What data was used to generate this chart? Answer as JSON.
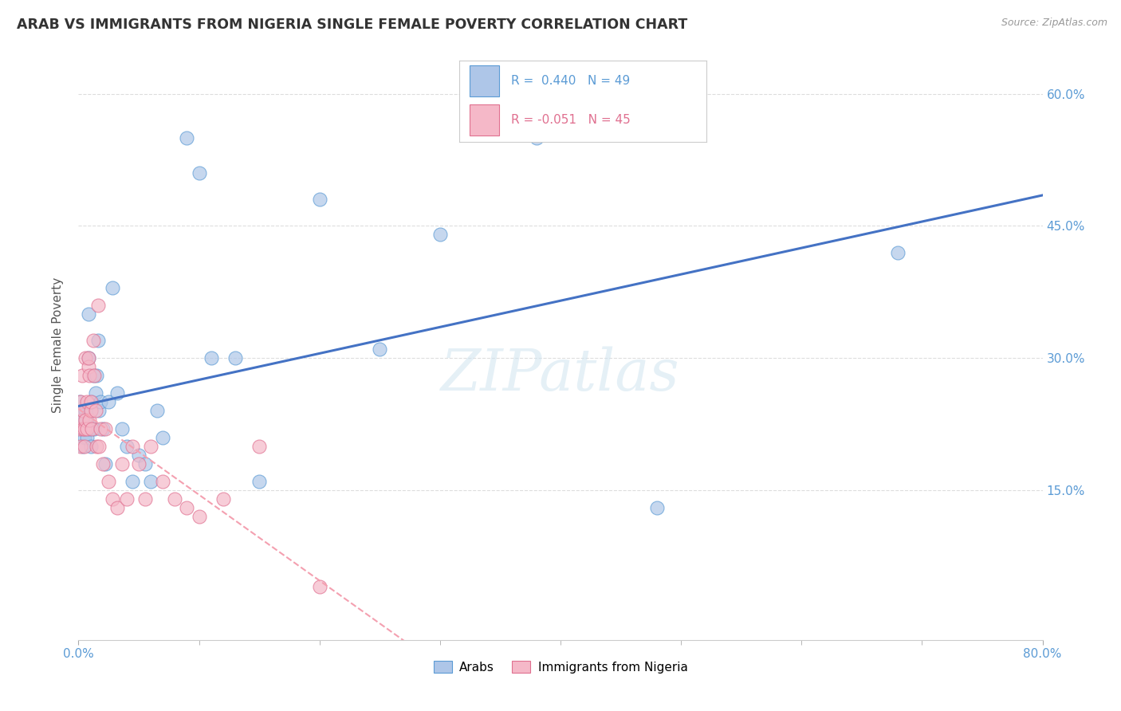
{
  "title": "ARAB VS IMMIGRANTS FROM NIGERIA SINGLE FEMALE POVERTY CORRELATION CHART",
  "source": "Source: ZipAtlas.com",
  "ylabel": "Single Female Poverty",
  "xlim": [
    0.0,
    0.8
  ],
  "ylim": [
    -0.02,
    0.65
  ],
  "ytick_vals": [
    0.15,
    0.3,
    0.45,
    0.6
  ],
  "ytick_labels": [
    "15.0%",
    "30.0%",
    "45.0%",
    "60.0%"
  ],
  "arab_R": 0.44,
  "arab_N": 49,
  "nigeria_R": -0.051,
  "nigeria_N": 45,
  "arab_color": "#aec6e8",
  "nigeria_color": "#f5b8c8",
  "arab_edge_color": "#5b9bd5",
  "nigeria_edge_color": "#e07090",
  "arab_line_color": "#4472c4",
  "nigeria_line_color": "#f4a0b0",
  "watermark": "ZIPatlas",
  "arab_scatter_x": [
    0.001,
    0.002,
    0.003,
    0.003,
    0.004,
    0.004,
    0.005,
    0.005,
    0.006,
    0.006,
    0.007,
    0.007,
    0.008,
    0.008,
    0.009,
    0.01,
    0.01,
    0.011,
    0.012,
    0.013,
    0.014,
    0.015,
    0.016,
    0.017,
    0.018,
    0.02,
    0.022,
    0.025,
    0.028,
    0.032,
    0.036,
    0.04,
    0.045,
    0.05,
    0.055,
    0.06,
    0.065,
    0.07,
    0.09,
    0.1,
    0.11,
    0.13,
    0.15,
    0.2,
    0.25,
    0.3,
    0.38,
    0.48,
    0.68
  ],
  "arab_scatter_y": [
    0.25,
    0.23,
    0.22,
    0.24,
    0.2,
    0.22,
    0.21,
    0.23,
    0.24,
    0.22,
    0.21,
    0.23,
    0.3,
    0.35,
    0.22,
    0.2,
    0.24,
    0.25,
    0.28,
    0.22,
    0.26,
    0.28,
    0.32,
    0.24,
    0.25,
    0.22,
    0.18,
    0.25,
    0.38,
    0.26,
    0.22,
    0.2,
    0.16,
    0.19,
    0.18,
    0.16,
    0.24,
    0.21,
    0.55,
    0.51,
    0.3,
    0.3,
    0.16,
    0.48,
    0.31,
    0.44,
    0.55,
    0.13,
    0.42
  ],
  "nigeria_scatter_x": [
    0.001,
    0.002,
    0.002,
    0.003,
    0.003,
    0.004,
    0.004,
    0.005,
    0.005,
    0.006,
    0.006,
    0.007,
    0.007,
    0.008,
    0.008,
    0.009,
    0.009,
    0.01,
    0.01,
    0.011,
    0.012,
    0.013,
    0.014,
    0.015,
    0.016,
    0.017,
    0.018,
    0.02,
    0.022,
    0.025,
    0.028,
    0.032,
    0.036,
    0.04,
    0.045,
    0.05,
    0.055,
    0.06,
    0.07,
    0.08,
    0.09,
    0.1,
    0.12,
    0.15,
    0.2
  ],
  "nigeria_scatter_y": [
    0.22,
    0.2,
    0.25,
    0.28,
    0.23,
    0.22,
    0.24,
    0.2,
    0.22,
    0.23,
    0.3,
    0.25,
    0.22,
    0.29,
    0.3,
    0.28,
    0.23,
    0.24,
    0.25,
    0.22,
    0.32,
    0.28,
    0.24,
    0.2,
    0.36,
    0.2,
    0.22,
    0.18,
    0.22,
    0.16,
    0.14,
    0.13,
    0.18,
    0.14,
    0.2,
    0.18,
    0.14,
    0.2,
    0.16,
    0.14,
    0.13,
    0.12,
    0.14,
    0.2,
    0.04
  ],
  "background_color": "#ffffff",
  "grid_color": "#dddddd"
}
